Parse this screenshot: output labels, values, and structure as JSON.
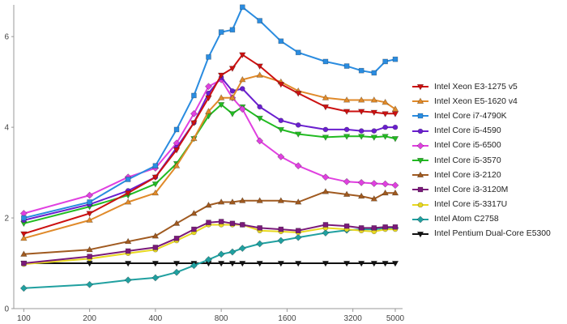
{
  "chart_data": {
    "type": "line",
    "title": "",
    "xlabel": "",
    "ylabel": "",
    "x_scale": "log",
    "xlim": [
      90,
      5400
    ],
    "ylim": [
      0,
      6.7
    ],
    "x_ticks": [
      100,
      200,
      400,
      800,
      1600,
      3200,
      5000
    ],
    "x_tick_labels": [
      "100",
      "200",
      "400",
      "800",
      "1600",
      "3200",
      "5000"
    ],
    "y_ticks": [
      0,
      2,
      4,
      6
    ],
    "y_tick_labels": [
      "0",
      "2",
      "4",
      "6"
    ],
    "grid": false,
    "legend_position": "right",
    "x": [
      100,
      200,
      300,
      400,
      500,
      600,
      700,
      800,
      900,
      1000,
      1200,
      1500,
      1800,
      2400,
      3000,
      3500,
      4000,
      4500,
      5000
    ],
    "series": [
      {
        "name": "Intel Xeon E3-1275 v5",
        "color": "#cc1111",
        "marker": "triangle-down",
        "values": [
          1.65,
          2.1,
          2.55,
          2.9,
          3.5,
          4.1,
          4.65,
          5.15,
          5.3,
          5.6,
          5.35,
          4.95,
          4.75,
          4.45,
          4.35,
          4.35,
          4.33,
          4.3,
          4.3
        ]
      },
      {
        "name": "Intel Xeon E5-1620 v4",
        "color": "#e08a2a",
        "marker": "triangle-up",
        "values": [
          1.55,
          1.95,
          2.35,
          2.55,
          3.15,
          3.75,
          4.35,
          4.65,
          4.65,
          5.05,
          5.15,
          5.0,
          4.8,
          4.65,
          4.6,
          4.6,
          4.6,
          4.55,
          4.4
        ]
      },
      {
        "name": "Intel Core i7-4790K",
        "color": "#2a8ce0",
        "marker": "square",
        "values": [
          2.0,
          2.35,
          2.85,
          3.15,
          3.95,
          4.7,
          5.55,
          6.1,
          6.15,
          6.65,
          6.35,
          5.9,
          5.65,
          5.45,
          5.35,
          5.25,
          5.2,
          5.45,
          5.5
        ]
      },
      {
        "name": "Intel Core i5-4590",
        "color": "#6a1fcf",
        "marker": "circle",
        "values": [
          1.95,
          2.3,
          2.6,
          2.9,
          3.55,
          4.1,
          4.75,
          5.1,
          4.8,
          4.85,
          4.45,
          4.15,
          4.05,
          3.95,
          3.95,
          3.92,
          3.92,
          4.0,
          4.0
        ]
      },
      {
        "name": "Intel Core i5-6500",
        "color": "#e040e0",
        "marker": "diamond",
        "values": [
          2.1,
          2.5,
          2.9,
          3.1,
          3.65,
          4.3,
          4.9,
          5.05,
          4.65,
          4.4,
          3.7,
          3.35,
          3.15,
          2.9,
          2.8,
          2.78,
          2.76,
          2.75,
          2.72
        ]
      },
      {
        "name": "Intel Core i5-3570",
        "color": "#22bb22",
        "marker": "triangle-down",
        "values": [
          1.88,
          2.25,
          2.5,
          2.75,
          3.2,
          3.75,
          4.25,
          4.5,
          4.3,
          4.45,
          4.2,
          3.95,
          3.85,
          3.78,
          3.8,
          3.8,
          3.78,
          3.8,
          3.75
        ]
      },
      {
        "name": "Intel Core i3-2120",
        "color": "#a05a20",
        "marker": "triangle-up",
        "values": [
          1.2,
          1.3,
          1.48,
          1.6,
          1.88,
          2.1,
          2.28,
          2.35,
          2.35,
          2.38,
          2.38,
          2.38,
          2.35,
          2.58,
          2.52,
          2.48,
          2.42,
          2.55,
          2.55
        ]
      },
      {
        "name": "Intel Core i3-3120M",
        "color": "#7a1a7a",
        "marker": "square",
        "values": [
          1.0,
          1.15,
          1.27,
          1.35,
          1.55,
          1.75,
          1.9,
          1.92,
          1.88,
          1.85,
          1.78,
          1.75,
          1.72,
          1.85,
          1.82,
          1.78,
          1.78,
          1.8,
          1.8
        ]
      },
      {
        "name": "Intel Core i5-3317U",
        "color": "#e8d820",
        "marker": "circle",
        "values": [
          0.98,
          1.1,
          1.22,
          1.3,
          1.5,
          1.68,
          1.85,
          1.85,
          1.85,
          1.85,
          1.72,
          1.7,
          1.68,
          1.78,
          1.75,
          1.72,
          1.7,
          1.75,
          1.75
        ]
      },
      {
        "name": "Intel Atom C2758",
        "color": "#20a0a0",
        "marker": "diamond",
        "values": [
          0.45,
          0.53,
          0.63,
          0.68,
          0.8,
          0.95,
          1.08,
          1.2,
          1.25,
          1.33,
          1.43,
          1.5,
          1.57,
          1.67,
          1.73,
          1.75,
          1.75,
          1.77,
          1.78
        ]
      },
      {
        "name": "Intel Pentium Dual-Core E5300",
        "color": "#111111",
        "marker": "triangle-down",
        "values": [
          1.0,
          1.0,
          1.0,
          1.0,
          1.0,
          1.0,
          1.0,
          1.0,
          1.0,
          1.0,
          1.0,
          1.0,
          1.0,
          1.0,
          1.0,
          1.0,
          1.0,
          1.0,
          1.0
        ]
      }
    ]
  }
}
